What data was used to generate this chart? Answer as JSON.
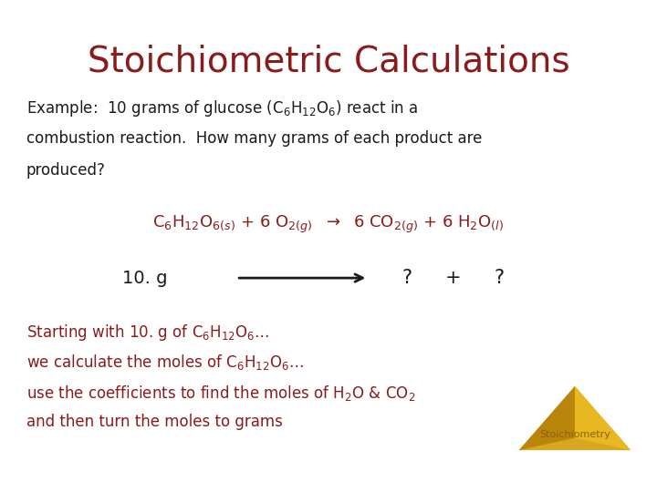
{
  "title": "Stoichiometric Calculations",
  "title_color": "#8B1A1A",
  "title_fontsize": 28,
  "bg_color": "#FFFFFF",
  "black_color": "#1a1a1a",
  "red_color": "#8B1A1A",
  "arrow_color": "#1a1a1a",
  "gold_color": "#DAA520",
  "gold_dark": "#B8860B",
  "stoich_text_color": "#8B6010",
  "example_line1": "Example:  10 grams of glucose (C$_6$H$_{12}$O$_6$) react in a",
  "example_line2": "combustion reaction.  How many grams of each product are",
  "example_line3": "produced?",
  "equation": "C$_6$H$_{12}$O$_{6(s)}$ + 6 O$_{2(g)}$  $\\rightarrow$  6 CO$_{2(g)}$ + 6 H$_2$O$_{(l)}$",
  "bottom_lines": [
    "Starting with 10. g of C$_6$H$_{12}$O$_6$…",
    "we calculate the moles of C$_6$H$_{12}$O$_6$…",
    "use the coefficients to find the moles of H$_2$O & CO$_2$",
    "and then turn the moles to grams"
  ]
}
